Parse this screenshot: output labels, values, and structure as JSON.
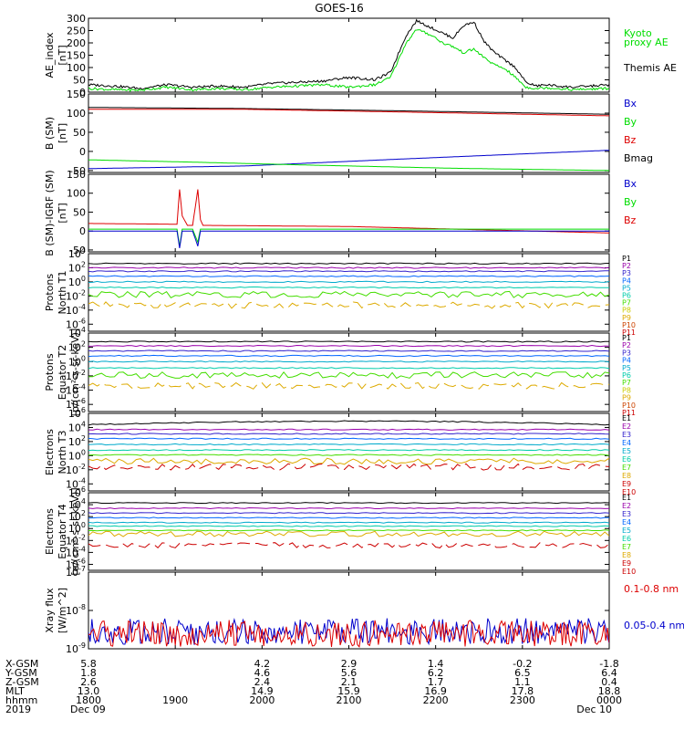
{
  "title": "GOES-16",
  "colors": {
    "black": "#000000",
    "green": "#00dd00",
    "red": "#dd0000",
    "blue": "#0000cc",
    "channels": [
      "#000000",
      "#9900aa",
      "#3322cc",
      "#0066ff",
      "#00aacc",
      "#00ccaa",
      "#44dd00",
      "#cccc00",
      "#ddaa00",
      "#cc4400",
      "#cc0000"
    ]
  },
  "panels": [
    {
      "id": "ae",
      "ylabel": [
        "AE_index",
        "[nT]"
      ],
      "scale": "linear",
      "ylim": [
        0,
        300
      ],
      "ticks": [
        "300",
        "250",
        "200",
        "150",
        "100",
        "50",
        "0"
      ],
      "tick_values": [
        300,
        250,
        200,
        150,
        100,
        50,
        0
      ],
      "legend": [
        {
          "text": "Kyoto",
          "color": "#00dd00"
        },
        {
          "text": "proxy AE",
          "color": "#00dd00"
        },
        {
          "text": "Themis AE",
          "color": "#000000"
        }
      ],
      "series": [
        {
          "name": "Themis AE",
          "color": "#000000",
          "x": [
            0,
            0.05,
            0.1,
            0.15,
            0.2,
            0.25,
            0.3,
            0.35,
            0.4,
            0.45,
            0.5,
            0.55,
            0.58,
            0.61,
            0.63,
            0.66,
            0.68,
            0.7,
            0.72,
            0.74,
            0.76,
            0.78,
            0.8,
            0.82,
            0.84,
            0.86,
            0.88,
            0.9,
            0.93,
            1.0
          ],
          "y": [
            30,
            25,
            15,
            30,
            20,
            25,
            20,
            35,
            40,
            45,
            60,
            50,
            80,
            230,
            290,
            260,
            240,
            220,
            270,
            285,
            205,
            160,
            130,
            100,
            40,
            25,
            30,
            25,
            20,
            30
          ]
        },
        {
          "name": "Kyoto proxy AE",
          "color": "#00dd00",
          "x": [
            0,
            0.05,
            0.1,
            0.15,
            0.2,
            0.25,
            0.3,
            0.35,
            0.4,
            0.45,
            0.5,
            0.55,
            0.58,
            0.61,
            0.63,
            0.66,
            0.68,
            0.7,
            0.72,
            0.74,
            0.76,
            0.78,
            0.8,
            0.82,
            0.84,
            0.86,
            0.88,
            0.9,
            0.93,
            1.0
          ],
          "y": [
            15,
            10,
            8,
            20,
            10,
            15,
            10,
            20,
            25,
            30,
            20,
            30,
            60,
            200,
            255,
            230,
            200,
            185,
            160,
            175,
            140,
            110,
            95,
            60,
            20,
            15,
            18,
            15,
            10,
            15
          ]
        }
      ]
    },
    {
      "id": "bsm",
      "ylabel": [
        "B (SM)",
        "[nT]"
      ],
      "scale": "linear",
      "ylim": [
        -55,
        150
      ],
      "ticks": [
        "150",
        "100",
        "50",
        "0",
        "-50"
      ],
      "tick_values": [
        150,
        100,
        50,
        0,
        -50
      ],
      "legend": [
        {
          "text": "Bx",
          "color": "#0000cc"
        },
        {
          "text": "By",
          "color": "#00dd00"
        },
        {
          "text": "Bz",
          "color": "#dd0000"
        },
        {
          "text": "Bmag",
          "color": "#000000"
        }
      ],
      "series": [
        {
          "name": "Bmag",
          "color": "#000000",
          "x": [
            0,
            0.3,
            0.6,
            1.0
          ],
          "y": [
            115,
            112,
            106,
            97
          ]
        },
        {
          "name": "Bz",
          "color": "#dd0000",
          "x": [
            0,
            0.3,
            0.6,
            1.0
          ],
          "y": [
            110,
            110,
            103,
            93
          ]
        },
        {
          "name": "Bx",
          "color": "#0000cc",
          "x": [
            0,
            0.3,
            0.6,
            1.0
          ],
          "y": [
            -45,
            -38,
            -20,
            3
          ]
        },
        {
          "name": "By",
          "color": "#00dd00",
          "x": [
            0,
            0.2,
            0.4,
            0.7,
            1.0
          ],
          "y": [
            -22,
            -28,
            -35,
            -44,
            -50
          ]
        }
      ]
    },
    {
      "id": "bigrf",
      "ylabel": [
        "B (SM)-IGRF (SM)",
        "[nT]"
      ],
      "scale": "linear",
      "ylim": [
        -55,
        150
      ],
      "ticks": [
        "150",
        "100",
        "50",
        "0",
        "-50"
      ],
      "tick_values": [
        150,
        100,
        50,
        0,
        -50
      ],
      "legend": [
        {
          "text": "Bx",
          "color": "#0000cc"
        },
        {
          "text": "By",
          "color": "#00dd00"
        },
        {
          "text": "Bz",
          "color": "#dd0000"
        }
      ],
      "series": [
        {
          "name": "Bz",
          "color": "#dd0000",
          "x": [
            0,
            0.17,
            0.175,
            0.18,
            0.19,
            0.2,
            0.21,
            0.215,
            0.22,
            0.5,
            1.0
          ],
          "y": [
            20,
            18,
            110,
            40,
            15,
            15,
            110,
            30,
            15,
            12,
            -5
          ]
        },
        {
          "name": "By",
          "color": "#00dd00",
          "x": [
            0,
            0.17,
            0.175,
            0.18,
            0.2,
            0.21,
            0.215,
            0.22,
            1.0
          ],
          "y": [
            5,
            5,
            -40,
            5,
            5,
            -30,
            5,
            5,
            5
          ]
        },
        {
          "name": "Bx",
          "color": "#0000cc",
          "x": [
            0,
            0.17,
            0.175,
            0.18,
            0.2,
            0.21,
            0.215,
            0.22,
            1.0
          ],
          "y": [
            0,
            0,
            -45,
            0,
            0,
            -40,
            0,
            0,
            0
          ]
        }
      ]
    },
    {
      "id": "pnt1",
      "ylabel": [
        "Protons",
        "North T1"
      ],
      "scale": "log",
      "ylim": [
        -7,
        4
      ],
      "ticks": [
        "10^4",
        "10^2",
        "10^0",
        "10^-2",
        "10^-4",
        "10^-6"
      ],
      "tick_values": [
        4,
        2,
        0,
        -2,
        -4,
        -6
      ],
      "legend": [
        {
          "text": "P1",
          "color": "#000000"
        },
        {
          "text": "P2",
          "color": "#9900aa"
        },
        {
          "text": "P3",
          "color": "#3322cc"
        },
        {
          "text": "P4",
          "color": "#0066ff"
        },
        {
          "text": "P5",
          "color": "#00aacc"
        },
        {
          "text": "P6",
          "color": "#00ccaa"
        },
        {
          "text": "P7",
          "color": "#44dd00"
        },
        {
          "text": "P8",
          "color": "#cccc00"
        },
        {
          "text": "P9",
          "color": "#ddaa00"
        },
        {
          "text": "P10",
          "color": "#cc4400"
        },
        {
          "text": "P11",
          "color": "#cc0000"
        }
      ],
      "levels": [
        2.6,
        2.0,
        1.5,
        0.8,
        0.0,
        -0.8,
        -1.8,
        -3.3
      ],
      "level_colors": [
        "#000000",
        "#9900aa",
        "#3322cc",
        "#0066ff",
        "#00aacc",
        "#00ccaa",
        "#44dd00",
        "#ddaa00"
      ]
    },
    {
      "id": "pet2",
      "ylabel": [
        "Protons",
        "Equator T2",
        "[p/(cm²-s-sr-keV)]"
      ],
      "scale": "log",
      "ylim": [
        -7,
        4
      ],
      "ticks": [
        "10^4",
        "10^2",
        "10^0",
        "10^-2",
        "10^-4",
        "10^-6"
      ],
      "tick_values": [
        4,
        2,
        0,
        -2,
        -4,
        -6
      ],
      "legend": [
        {
          "text": "P1",
          "color": "#000000"
        },
        {
          "text": "P2",
          "color": "#9900aa"
        },
        {
          "text": "P3",
          "color": "#3322cc"
        },
        {
          "text": "P4",
          "color": "#0066ff"
        },
        {
          "text": "P5",
          "color": "#00aacc"
        },
        {
          "text": "P6",
          "color": "#00ccaa"
        },
        {
          "text": "P7",
          "color": "#44dd00"
        },
        {
          "text": "P8",
          "color": "#cccc00"
        },
        {
          "text": "P9",
          "color": "#ddaa00"
        },
        {
          "text": "P10",
          "color": "#cc4400"
        },
        {
          "text": "P11",
          "color": "#cc0000"
        }
      ],
      "levels": [
        2.8,
        2.2,
        1.5,
        0.8,
        0.0,
        -0.9,
        -1.9,
        -3.4
      ],
      "level_colors": [
        "#000000",
        "#9900aa",
        "#3322cc",
        "#0066ff",
        "#00aacc",
        "#00ccaa",
        "#44dd00",
        "#ddaa00"
      ]
    },
    {
      "id": "ent3",
      "ylabel": [
        "Electrons",
        "North T3"
      ],
      "scale": "log",
      "ylim": [
        -5,
        6
      ],
      "ticks": [
        "10^6",
        "10^4",
        "10^2",
        "10^0",
        "10^-2",
        "10^-4"
      ],
      "tick_values": [
        6,
        4,
        2,
        0,
        -2,
        -4
      ],
      "legend": [
        {
          "text": "E1",
          "color": "#000000"
        },
        {
          "text": "E2",
          "color": "#9900aa"
        },
        {
          "text": "E3",
          "color": "#3322cc"
        },
        {
          "text": "E4",
          "color": "#0066ff"
        },
        {
          "text": "E5",
          "color": "#00aacc"
        },
        {
          "text": "E6",
          "color": "#00ccaa"
        },
        {
          "text": "E7",
          "color": "#44dd00"
        },
        {
          "text": "E8",
          "color": "#ddaa00"
        },
        {
          "text": "E9",
          "color": "#cc0000"
        },
        {
          "text": "E10",
          "color": "#cc0000"
        }
      ],
      "levels": [
        4.4,
        3.7,
        3.1,
        2.4,
        1.6,
        0.8,
        0.1,
        -0.8,
        -1.6
      ],
      "level_colors": [
        "#000000",
        "#9900aa",
        "#3322cc",
        "#0066ff",
        "#00aacc",
        "#00ccaa",
        "#44dd00",
        "#ddaa00",
        "#cc0000"
      ]
    },
    {
      "id": "eet4",
      "ylabel": [
        "Electrons",
        "Equator T4",
        "[e/(cm²-s-sr-keV)]"
      ],
      "scale": "log",
      "ylim": [
        -7,
        6
      ],
      "ticks": [
        "10^6",
        "10^4",
        "10^2",
        "10^0",
        "10^-2",
        "10^-4",
        "10^-6"
      ],
      "tick_values": [
        6,
        4,
        2,
        0,
        -2,
        -4,
        -6
      ],
      "legend": [
        {
          "text": "E1",
          "color": "#000000"
        },
        {
          "text": "E2",
          "color": "#9900aa"
        },
        {
          "text": "E3",
          "color": "#3322cc"
        },
        {
          "text": "E4",
          "color": "#0066ff"
        },
        {
          "text": "E5",
          "color": "#00aacc"
        },
        {
          "text": "E6",
          "color": "#00ccaa"
        },
        {
          "text": "E7",
          "color": "#44dd00"
        },
        {
          "text": "E8",
          "color": "#ddaa00"
        },
        {
          "text": "E9",
          "color": "#cc0000"
        },
        {
          "text": "E10",
          "color": "#cc0000"
        }
      ],
      "levels": [
        4.3,
        3.4,
        2.6,
        1.8,
        1.0,
        0.4,
        -0.3,
        -0.9,
        -2.8
      ],
      "level_colors": [
        "#000000",
        "#9900aa",
        "#3322cc",
        "#0066ff",
        "#00aacc",
        "#00ccaa",
        "#44dd00",
        "#ddaa00",
        "#cc0000"
      ]
    },
    {
      "id": "xray",
      "ylabel": [
        "Xray flux",
        "[W/m^2]"
      ],
      "scale": "log",
      "ylim": [
        -9,
        -7
      ],
      "ticks": [
        "10^-7",
        "10^-8",
        "10^-9"
      ],
      "tick_values": [
        -7,
        -8,
        -9
      ],
      "legend": [
        {
          "text": "0.1-0.8 nm",
          "color": "#dd0000"
        },
        {
          "text": "0.05-0.4 nm",
          "color": "#0000cc"
        }
      ],
      "levels": [
        -8.55,
        -8.6
      ],
      "level_colors": [
        "#0000cc",
        "#dd0000"
      ]
    }
  ],
  "axis_rows": [
    {
      "label": "X-GSM",
      "values": [
        "5.8",
        "4.2",
        "2.9",
        "1.4",
        "-0.2",
        "-1.8"
      ]
    },
    {
      "label": "Y-GSM",
      "values": [
        "1.8",
        "4.6",
        "5.6",
        "6.2",
        "6.5",
        "6.4"
      ]
    },
    {
      "label": "Z-GSM",
      "values": [
        "2.6",
        "2.4",
        "2.1",
        "1.7",
        "1.1",
        "0.4"
      ]
    },
    {
      "label": "MLT",
      "values": [
        "13.0",
        "14.9",
        "15.9",
        "16.9",
        "17.8",
        "18.8"
      ]
    },
    {
      "label": "hhmm",
      "values": [
        "1800",
        "1900",
        "2000",
        "2100",
        "2200",
        "2300",
        "0000"
      ]
    },
    {
      "label": "2019",
      "values": [
        "Dec 09",
        "Dec 10"
      ]
    }
  ],
  "chart_data": {
    "type": "line",
    "title": "GOES-16",
    "x_time_ticks": [
      "1800",
      "1900",
      "2000",
      "2100",
      "2200",
      "2300",
      "0000"
    ],
    "x_range": [
      "2019-12-09 18:00",
      "2019-12-10 00:00"
    ],
    "series": [
      {
        "name": "Themis AE",
        "unit": "nT",
        "ylim": [
          0,
          300
        ],
        "peak": 290
      },
      {
        "name": "Kyoto proxy AE",
        "unit": "nT",
        "ylim": [
          0,
          300
        ],
        "peak": 255
      },
      {
        "name": "Bmag",
        "unit": "nT",
        "values": [
          115,
          112,
          106,
          97
        ]
      },
      {
        "name": "Bz",
        "unit": "nT",
        "values": [
          110,
          110,
          103,
          93
        ]
      },
      {
        "name": "Bx",
        "unit": "nT",
        "values": [
          -45,
          -38,
          -20,
          3
        ]
      },
      {
        "name": "By",
        "unit": "nT",
        "values": [
          -22,
          -28,
          -35,
          -44,
          -50
        ]
      },
      {
        "name": "0.1-0.8 nm",
        "unit": "W/m^2",
        "approx": 2.5e-09
      },
      {
        "name": "0.05-0.4 nm",
        "unit": "W/m^2",
        "approx": 2.8e-09
      }
    ]
  }
}
